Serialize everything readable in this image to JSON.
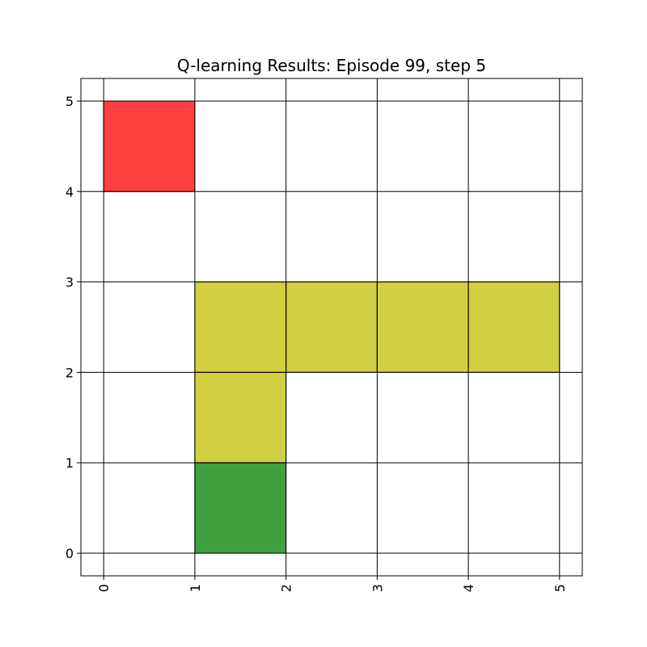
{
  "chart_data": {
    "type": "heatmap",
    "title": "Q-learning Results: Episode 99, step 5",
    "xlabel": "",
    "ylabel": "",
    "xlim": [
      -0.25,
      5.25
    ],
    "ylim": [
      -0.25,
      5.25
    ],
    "xticks": [
      "0",
      "1",
      "2",
      "3",
      "4",
      "5"
    ],
    "yticks": [
      "0",
      "1",
      "2",
      "3",
      "4",
      "5"
    ],
    "grid": true,
    "cells": [
      {
        "x": 0,
        "y": 4,
        "color": "#ff4040",
        "role": "goal"
      },
      {
        "x": 1,
        "y": 2,
        "color": "#d2d040",
        "role": "path"
      },
      {
        "x": 2,
        "y": 2,
        "color": "#d2d040",
        "role": "path"
      },
      {
        "x": 3,
        "y": 2,
        "color": "#d2d040",
        "role": "path"
      },
      {
        "x": 4,
        "y": 2,
        "color": "#d2d040",
        "role": "path"
      },
      {
        "x": 1,
        "y": 1,
        "color": "#d2d040",
        "role": "path"
      },
      {
        "x": 1,
        "y": 0,
        "color": "#40a040",
        "role": "agent"
      }
    ]
  }
}
